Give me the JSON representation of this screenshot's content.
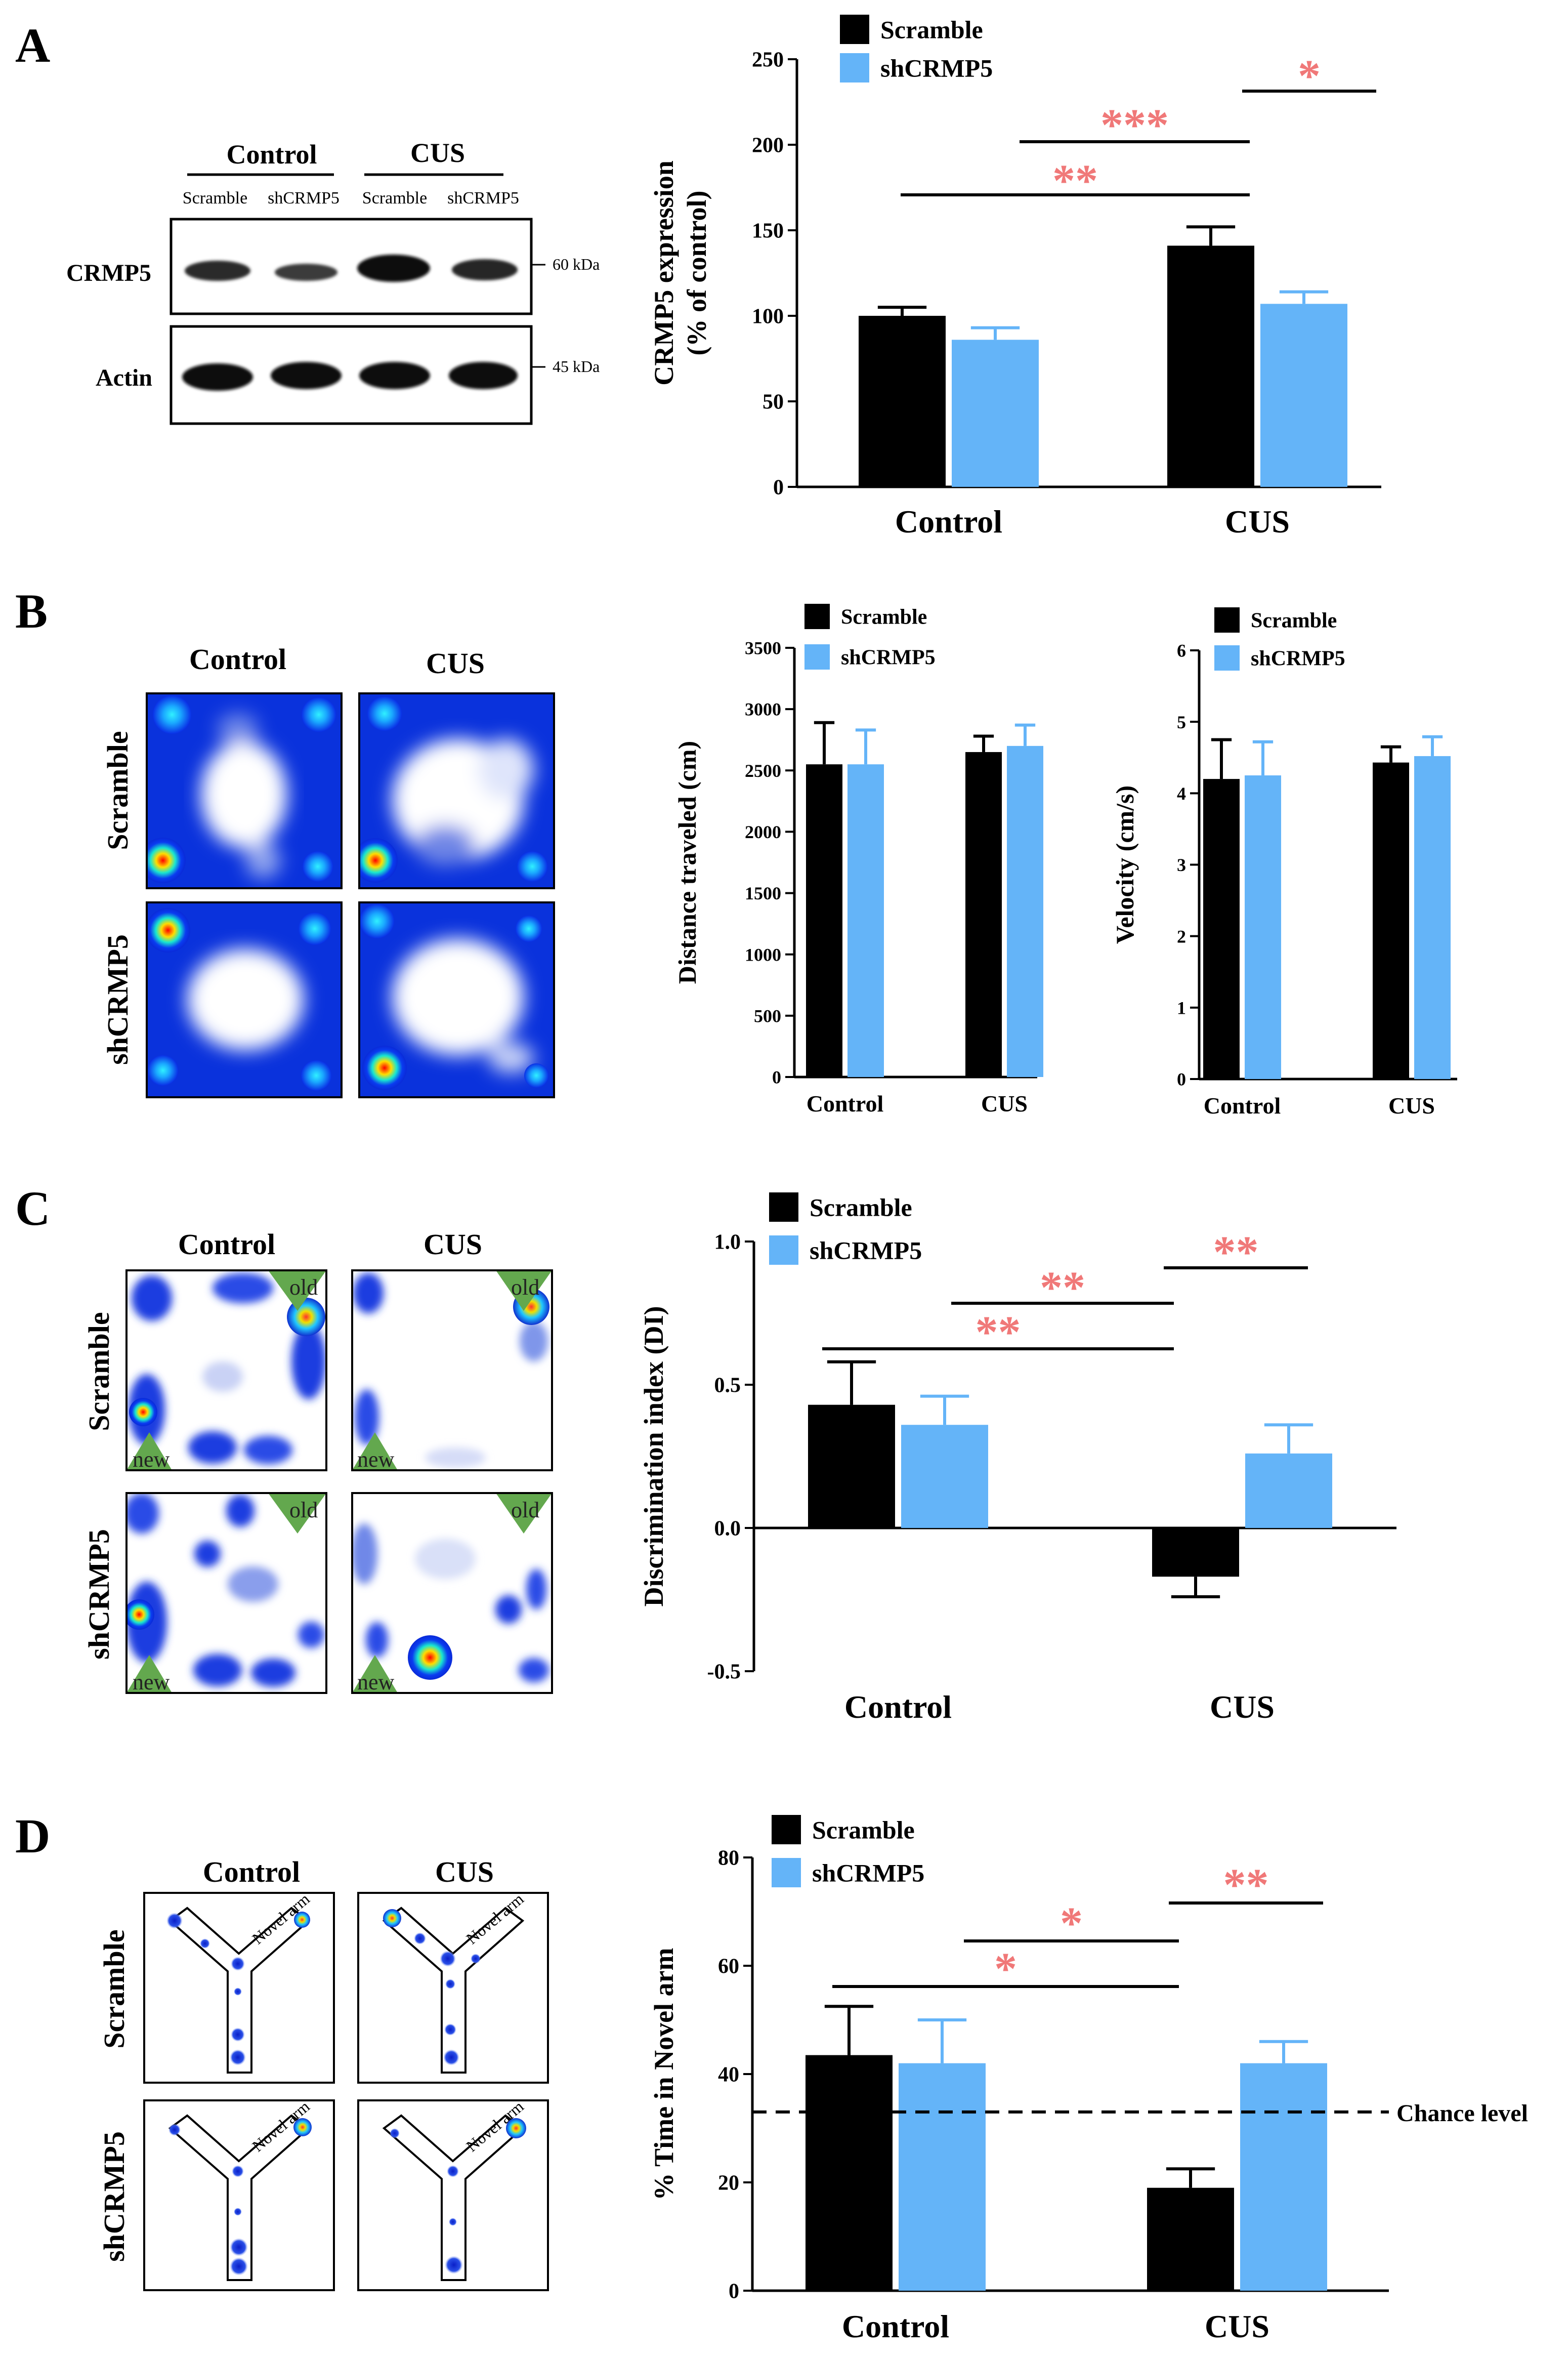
{
  "colors": {
    "scramble": "#000000",
    "shcrmp5": "#64b4f8",
    "sig": "#f07878"
  },
  "panels": {
    "A": {
      "letter": "A",
      "blot": {
        "group_labels": [
          "Control",
          "CUS"
        ],
        "lane_labels": [
          "Scramble",
          "shCRMP5",
          "Scramble",
          "shCRMP5"
        ],
        "row_labels": [
          "CRMP5",
          "Actin"
        ],
        "markers": [
          "60 kDa",
          "45 kDa"
        ]
      }
    },
    "B": {
      "letter": "B",
      "col_labels": [
        "Control",
        "CUS"
      ],
      "row_labels": [
        "Scramble",
        "shCRMP5"
      ]
    },
    "C": {
      "letter": "C",
      "col_labels": [
        "Control",
        "CUS"
      ],
      "row_labels": [
        "Scramble",
        "shCRMP5"
      ],
      "obj_old": "old",
      "obj_new": "new"
    },
    "D": {
      "letter": "D",
      "col_labels": [
        "Control",
        "CUS"
      ],
      "row_labels": [
        "Scramble",
        "shCRMP5"
      ],
      "arm_label": "Novel arm"
    }
  },
  "chart_data": [
    {
      "id": "A",
      "type": "bar",
      "categories": [
        "Control",
        "CUS"
      ],
      "series": [
        {
          "name": "Scramble",
          "values": [
            100,
            141
          ],
          "errors": [
            5,
            11
          ]
        },
        {
          "name": "shCRMP5",
          "values": [
            86,
            107
          ],
          "errors": [
            7,
            7
          ]
        }
      ],
      "ylabel": [
        "CRMP5 expression",
        "(% of control)"
      ],
      "ylim": [
        0,
        250
      ],
      "yticks": [
        0,
        50,
        100,
        150,
        200,
        250
      ],
      "legend": [
        "Scramble",
        "shCRMP5"
      ],
      "significance": [
        {
          "from": [
            0,
            0
          ],
          "to": [
            1,
            0
          ],
          "label": "**"
        },
        {
          "from": [
            0,
            1
          ],
          "to": [
            1,
            0
          ],
          "label": "***"
        },
        {
          "from": [
            1,
            0
          ],
          "to": [
            1,
            1
          ],
          "label": "*"
        }
      ]
    },
    {
      "id": "B1",
      "type": "bar",
      "categories": [
        "Control",
        "CUS"
      ],
      "series": [
        {
          "name": "Scramble",
          "values": [
            2550,
            2650
          ],
          "errors": [
            340,
            130
          ]
        },
        {
          "name": "shCRMP5",
          "values": [
            2550,
            2700
          ],
          "errors": [
            280,
            170
          ]
        }
      ],
      "ylabel": [
        "Distance traveled (cm)"
      ],
      "ylim": [
        0,
        3500
      ],
      "yticks": [
        0,
        500,
        1000,
        1500,
        2000,
        2500,
        3000,
        3500
      ],
      "legend": [
        "Scramble",
        "shCRMP5"
      ],
      "significance": []
    },
    {
      "id": "B2",
      "type": "bar",
      "categories": [
        "Control",
        "CUS"
      ],
      "series": [
        {
          "name": "Scramble",
          "values": [
            4.2,
            4.43
          ],
          "errors": [
            0.55,
            0.22
          ]
        },
        {
          "name": "shCRMP5",
          "values": [
            4.25,
            4.52
          ],
          "errors": [
            0.47,
            0.27
          ]
        }
      ],
      "ylabel": [
        "Velocity (cm/s)"
      ],
      "ylim": [
        0,
        6
      ],
      "yticks": [
        0,
        1,
        2,
        3,
        4,
        5,
        6
      ],
      "legend": [
        "Scramble",
        "shCRMP5"
      ],
      "significance": []
    },
    {
      "id": "C",
      "type": "bar",
      "categories": [
        "Control",
        "CUS"
      ],
      "series": [
        {
          "name": "Scramble",
          "values": [
            0.43,
            -0.17
          ],
          "errors": [
            0.15,
            0.07
          ]
        },
        {
          "name": "shCRMP5",
          "values": [
            0.36,
            0.26
          ],
          "errors": [
            0.1,
            0.1
          ]
        }
      ],
      "ylabel": [
        "Discrimination index (DI)"
      ],
      "ylim": [
        -0.5,
        1.0
      ],
      "yticks": [
        -0.5,
        0.0,
        0.5,
        1.0
      ],
      "ytick_labels": [
        "-0.5",
        "0.0",
        "0.5",
        "1.0"
      ],
      "zero_line": true,
      "legend": [
        "Scramble",
        "shCRMP5"
      ],
      "significance": [
        {
          "from": [
            0,
            0
          ],
          "to": [
            1,
            0
          ],
          "label": "**"
        },
        {
          "from": [
            0,
            1
          ],
          "to": [
            1,
            0
          ],
          "label": "**"
        },
        {
          "from": [
            1,
            0
          ],
          "to": [
            1,
            1
          ],
          "label": "**"
        }
      ]
    },
    {
      "id": "D",
      "type": "bar",
      "categories": [
        "Control",
        "CUS"
      ],
      "series": [
        {
          "name": "Scramble",
          "values": [
            43.5,
            19
          ],
          "errors": [
            9,
            3.5
          ]
        },
        {
          "name": "shCRMP5",
          "values": [
            42,
            42
          ],
          "errors": [
            8,
            4
          ]
        }
      ],
      "ylabel": [
        "% Time in Novel arm"
      ],
      "ylim": [
        0,
        80
      ],
      "yticks": [
        0,
        20,
        40,
        60,
        80
      ],
      "reference_line": {
        "value": 33,
        "label": "Chance level"
      },
      "legend": [
        "Scramble",
        "shCRMP5"
      ],
      "significance": [
        {
          "from": [
            0,
            0
          ],
          "to": [
            1,
            0
          ],
          "label": "*"
        },
        {
          "from": [
            0,
            1
          ],
          "to": [
            1,
            0
          ],
          "label": "*"
        },
        {
          "from": [
            1,
            0
          ],
          "to": [
            1,
            1
          ],
          "label": "**"
        }
      ]
    }
  ]
}
